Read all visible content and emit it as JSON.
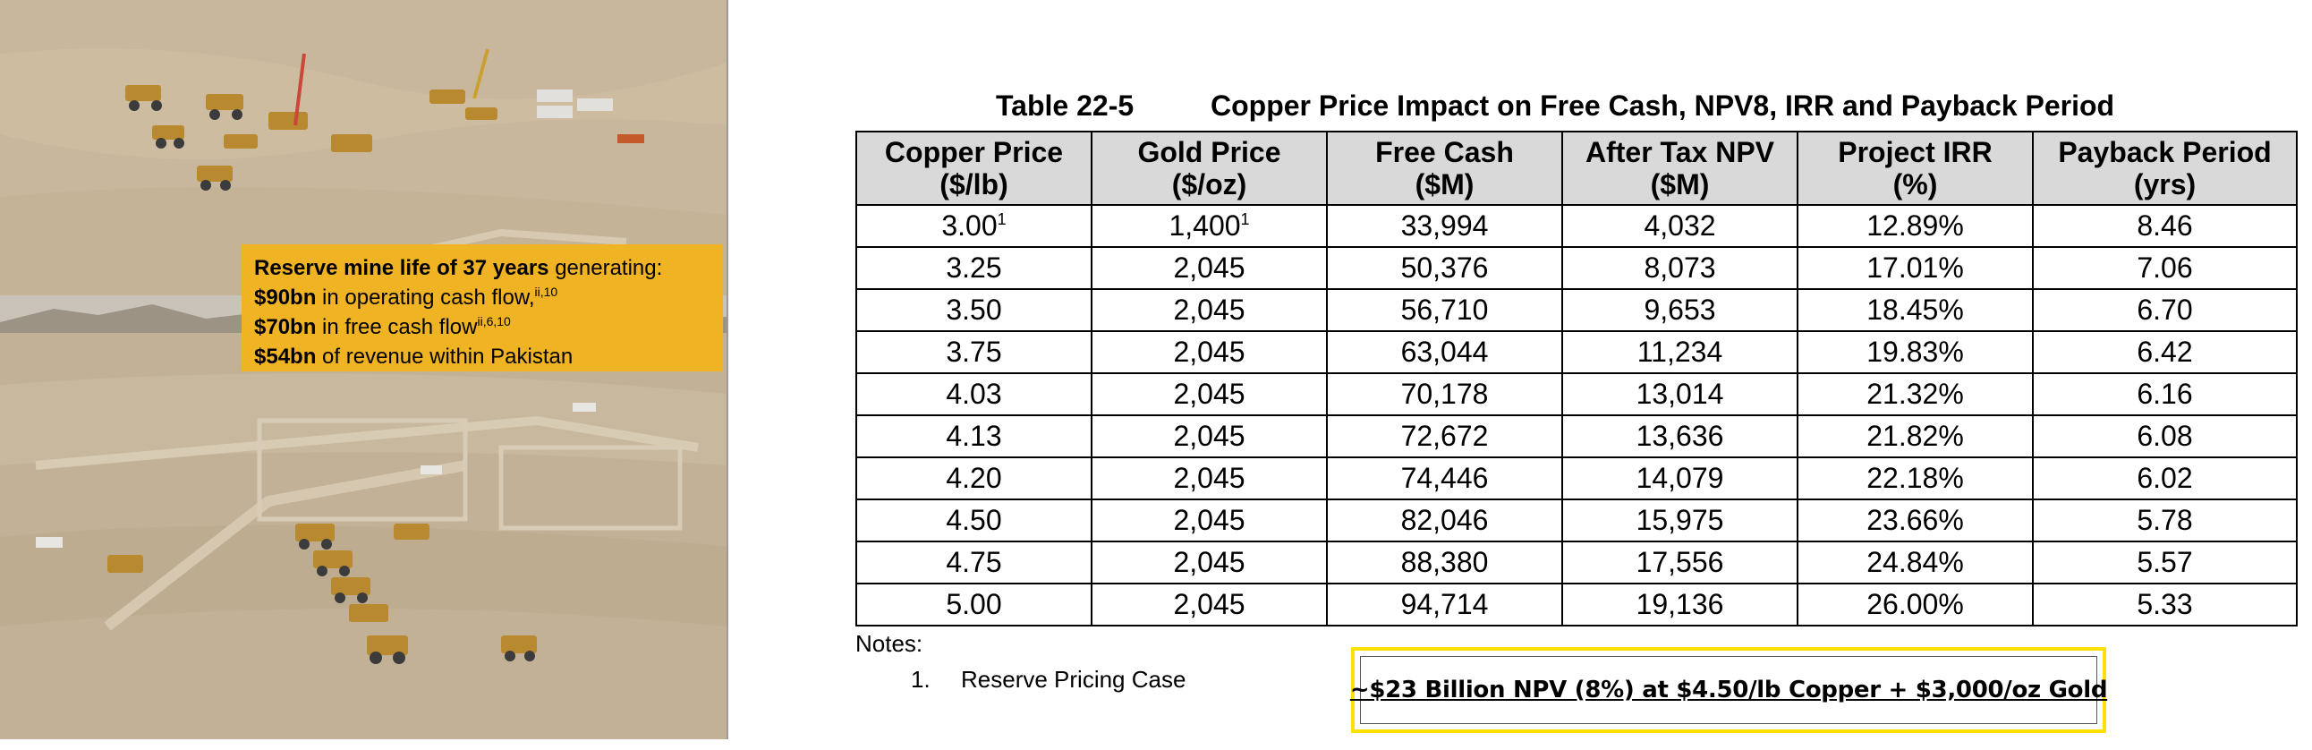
{
  "callout": {
    "line1_bold": "Reserve mine life of 37 years",
    "line1_rest": " generating:",
    "line2_bold": "$90bn",
    "line2_rest": " in operating cash flow,",
    "line2_sup": "ii,10",
    "line3_bold": "$70bn",
    "line3_rest": " in free cash flow",
    "line3_sup": "ii,6,10",
    "line4_bold": "$54bn",
    "line4_rest": " of revenue within Pakistan"
  },
  "table": {
    "number": "Table 22-5",
    "title": "Copper Price Impact on Free Cash, NPV8, IRR and Payback Period",
    "headers": [
      {
        "line1": "Copper Price",
        "line2": "($/lb)"
      },
      {
        "line1": "Gold Price",
        "line2": "($/oz)"
      },
      {
        "line1": "Free Cash",
        "line2": "($M)"
      },
      {
        "line1": "After Tax NPV",
        "line2": "($M)"
      },
      {
        "line1": "Project IRR",
        "line2": "(%)"
      },
      {
        "line1": "Payback Period",
        "line2": "(yrs)"
      }
    ],
    "rows": [
      {
        "copper": "3.00",
        "copper_sup": "1",
        "gold": "1,400",
        "gold_sup": "1",
        "free_cash": "33,994",
        "npv": "4,032",
        "irr": "12.89%",
        "payback": "8.46"
      },
      {
        "copper": "3.25",
        "copper_sup": "",
        "gold": "2,045",
        "gold_sup": "",
        "free_cash": "50,376",
        "npv": "8,073",
        "irr": "17.01%",
        "payback": "7.06"
      },
      {
        "copper": "3.50",
        "copper_sup": "",
        "gold": "2,045",
        "gold_sup": "",
        "free_cash": "56,710",
        "npv": "9,653",
        "irr": "18.45%",
        "payback": "6.70"
      },
      {
        "copper": "3.75",
        "copper_sup": "",
        "gold": "2,045",
        "gold_sup": "",
        "free_cash": "63,044",
        "npv": "11,234",
        "irr": "19.83%",
        "payback": "6.42"
      },
      {
        "copper": "4.03",
        "copper_sup": "",
        "gold": "2,045",
        "gold_sup": "",
        "free_cash": "70,178",
        "npv": "13,014",
        "irr": "21.32%",
        "payback": "6.16"
      },
      {
        "copper": "4.13",
        "copper_sup": "",
        "gold": "2,045",
        "gold_sup": "",
        "free_cash": "72,672",
        "npv": "13,636",
        "irr": "21.82%",
        "payback": "6.08"
      },
      {
        "copper": "4.20",
        "copper_sup": "",
        "gold": "2,045",
        "gold_sup": "",
        "free_cash": "74,446",
        "npv": "14,079",
        "irr": "22.18%",
        "payback": "6.02"
      },
      {
        "copper": "4.50",
        "copper_sup": "",
        "gold": "2,045",
        "gold_sup": "",
        "free_cash": "82,046",
        "npv": "15,975",
        "irr": "23.66%",
        "payback": "5.78"
      },
      {
        "copper": "4.75",
        "copper_sup": "",
        "gold": "2,045",
        "gold_sup": "",
        "free_cash": "88,380",
        "npv": "17,556",
        "irr": "24.84%",
        "payback": "5.57"
      },
      {
        "copper": "5.00",
        "copper_sup": "",
        "gold": "2,045",
        "gold_sup": "",
        "free_cash": "94,714",
        "npv": "19,136",
        "irr": "26.00%",
        "payback": "5.33"
      }
    ]
  },
  "notes": {
    "title": "Notes:",
    "items": [
      {
        "num": "1.",
        "text": "Reserve Pricing Case"
      }
    ]
  },
  "highlight": "~$23 Billion NPV (8%) at $4.50/lb Copper + $3,000/oz Gold",
  "colors": {
    "callout_bg": "#f0b323",
    "header_bg": "#d9d9d9",
    "highlight_border": "#ffe000"
  }
}
